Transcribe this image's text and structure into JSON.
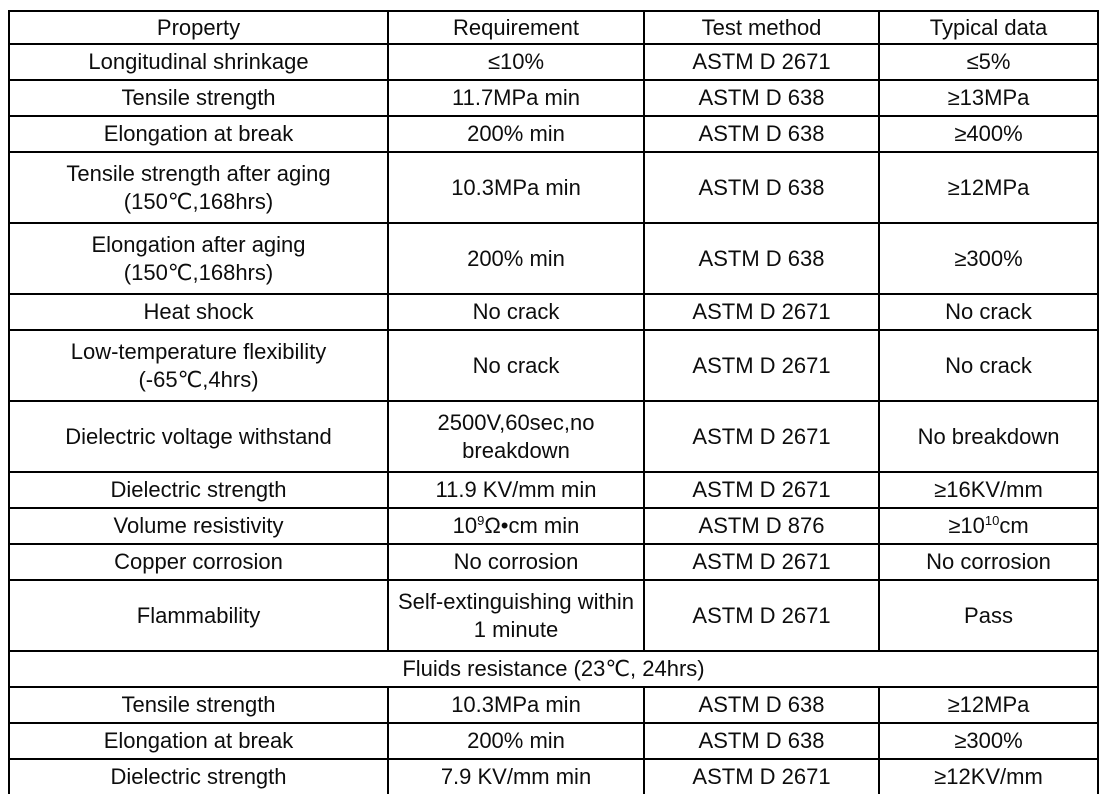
{
  "table": {
    "columns": [
      "Property",
      "Requirement",
      "Test method",
      "Typical data"
    ],
    "rows": [
      {
        "cells": [
          "Longitudinal shrinkage",
          "≤10%",
          "ASTM D 2671",
          "≤5%"
        ]
      },
      {
        "cells": [
          "Tensile strength",
          "11.7MPa min",
          "ASTM D 638",
          "≥13MPa"
        ]
      },
      {
        "cells": [
          "Elongation at break",
          "200% min",
          "ASTM D 638",
          "≥400%"
        ]
      },
      {
        "cells": [
          "Tensile strength after aging\n(150℃,168hrs)",
          "10.3MPa min",
          "ASTM D 638",
          "≥12MPa"
        ]
      },
      {
        "cells": [
          "Elongation after aging\n(150℃,168hrs)",
          "200% min",
          "ASTM D 638",
          "≥300%"
        ]
      },
      {
        "cells": [
          "Heat shock",
          "No crack",
          "ASTM D 2671",
          "No crack"
        ]
      },
      {
        "cells": [
          "Low-temperature flexibility\n(-65℃,4hrs)",
          "No crack",
          "ASTM D 2671",
          "No crack"
        ]
      },
      {
        "cells": [
          "Dielectric voltage withstand",
          "2500V,60sec,no breakdown",
          "ASTM D 2671",
          "No breakdown"
        ]
      },
      {
        "cells": [
          "Dielectric strength",
          "11.9 KV/mm min",
          "ASTM D 2671",
          "≥16KV/mm"
        ]
      },
      {
        "cells": [
          "Volume resistivity",
          {
            "pre": "10",
            "sup": "9",
            "post": "Ω•cm min"
          },
          "ASTM D 876",
          {
            "pre": "≥10",
            "sup": "10",
            "post": "cm"
          }
        ]
      },
      {
        "cells": [
          "Copper corrosion",
          "No corrosion",
          "ASTM D 2671",
          "No corrosion"
        ]
      },
      {
        "cells": [
          "Flammability",
          "Self-extinguishing within 1 minute",
          "ASTM D 2671",
          "Pass"
        ]
      },
      {
        "section": "Fluids resistance (23℃, 24hrs)"
      },
      {
        "cells": [
          "Tensile strength",
          "10.3MPa min",
          "ASTM D 638",
          "≥12MPa"
        ]
      },
      {
        "cells": [
          "Elongation at break",
          "200% min",
          "ASTM D 638",
          "≥300%"
        ]
      },
      {
        "cells": [
          "Dielectric strength",
          "7.9 KV/mm min",
          "ASTM D 2671",
          "≥12KV/mm"
        ]
      }
    ]
  },
  "colors": {
    "border": "#000000",
    "text": "#0d0d0d",
    "background": "#ffffff"
  }
}
